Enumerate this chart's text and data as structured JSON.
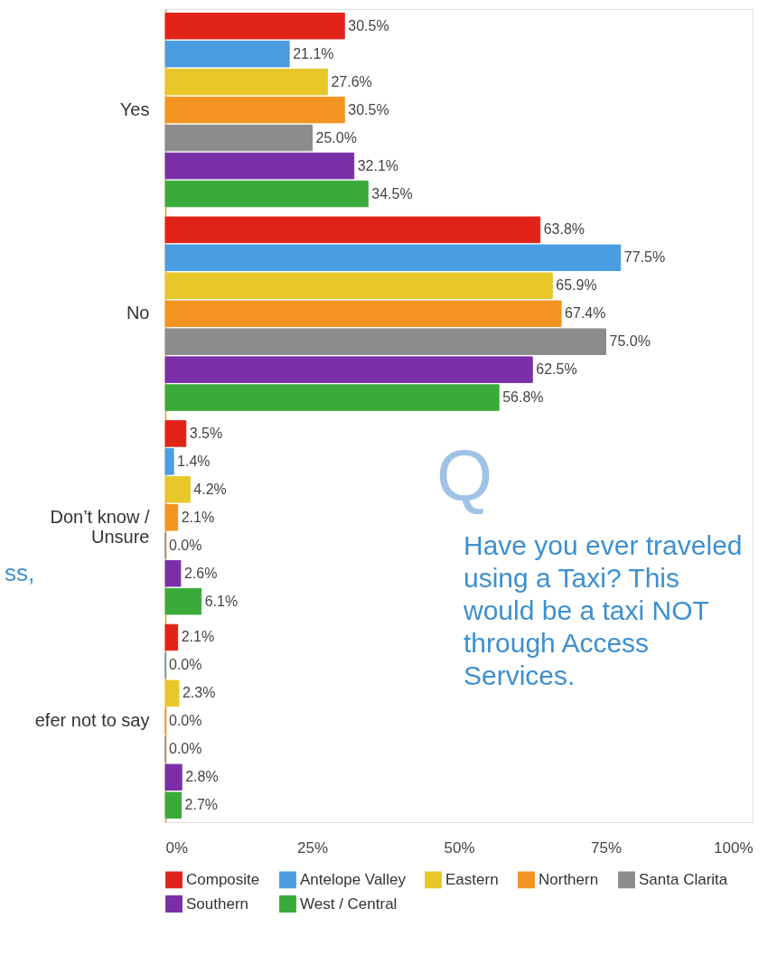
{
  "chart_data": {
    "type": "bar",
    "orientation": "horizontal",
    "categories": [
      "Yes",
      "No",
      "Don’t know / Unsure",
      "efer not to say"
    ],
    "series": [
      {
        "name": "Composite",
        "color": "#e2231a",
        "values": [
          30.5,
          63.8,
          3.5,
          2.1
        ],
        "value_labels": [
          "30.5%",
          "63.8%",
          "3.5%",
          "2.1%"
        ]
      },
      {
        "name": "Antelope Valley",
        "color": "#4a9de0",
        "values": [
          21.1,
          77.5,
          1.4,
          0.0
        ],
        "value_labels": [
          "21.1%",
          "77.5%",
          "1.4%",
          "0.0%"
        ]
      },
      {
        "name": "Eastern",
        "color": "#e8c72a",
        "values": [
          27.6,
          65.9,
          4.2,
          2.3
        ],
        "value_labels": [
          "27.6%",
          "65.9%",
          "4.2%",
          "2.3%"
        ]
      },
      {
        "name": "Northern",
        "color": "#f39422",
        "values": [
          30.5,
          67.4,
          2.1,
          0.0
        ],
        "value_labels": [
          "30.5%",
          "67.4%",
          "2.1%",
          "0.0%"
        ]
      },
      {
        "name": "Santa Clarita",
        "color": "#8c8c8c",
        "values": [
          25.0,
          75.0,
          0.0,
          0.0
        ],
        "value_labels": [
          "25.0%",
          "75.0%",
          "0.0%",
          "0.0%"
        ]
      },
      {
        "name": "Southern",
        "color": "#7a2fa8",
        "values": [
          32.1,
          62.5,
          2.6,
          2.8
        ],
        "value_labels": [
          "32.1%",
          "62.5%",
          "2.6%",
          "2.8%"
        ]
      },
      {
        "name": "West / Central",
        "color": "#3aab3a",
        "values": [
          34.5,
          56.8,
          6.1,
          2.7
        ],
        "value_labels": [
          "34.5%",
          "56.8%",
          "6.1%",
          "2.7%"
        ]
      }
    ],
    "xlim": [
      0,
      100
    ],
    "xticks": [
      {
        "value": 0,
        "label": "0%"
      },
      {
        "value": 25,
        "label": "25%"
      },
      {
        "value": 50,
        "label": "50%"
      },
      {
        "value": 75,
        "label": "75%"
      },
      {
        "value": 100,
        "label": "100%"
      }
    ],
    "grid": false,
    "legend": "bottom",
    "annotations": [
      "Q",
      "Have you ever traveled using a Taxi? This would be a taxi NOT through Access Services.",
      "ss,"
    ]
  }
}
